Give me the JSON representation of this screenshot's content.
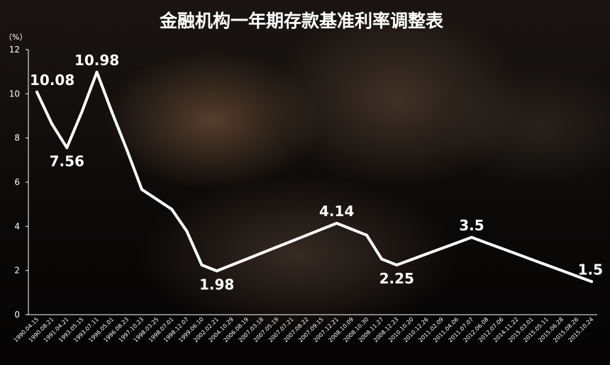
{
  "chart_data": {
    "type": "line",
    "title": "金融机构一年期存款基准利率调整表",
    "ylabel": "（%）",
    "ylim": [
      0,
      12
    ],
    "yticks": [
      0,
      2,
      4,
      6,
      8,
      10,
      12
    ],
    "grid": false,
    "legend": "none",
    "line_color": "#ffffff",
    "categories": [
      "1990.04.15",
      "1990.08.21",
      "1991.04.21",
      "1993.05.15",
      "1993.07.11",
      "1996.05.01",
      "1996.08.23",
      "1997.10.23",
      "1998.03.25",
      "1998.07.01",
      "1998.12.07",
      "1999.06.10",
      "2002.02.21",
      "2004.10.29",
      "2006.08.19",
      "2007.03.18",
      "2007.05.19",
      "2007.07.21",
      "2007.08.22",
      "2007.09.15",
      "2007.12.21",
      "2008.10.09",
      "2008.10.30",
      "2008.11.27",
      "2008.12.23",
      "2010.10.20",
      "2010.12.26",
      "2011.02.09",
      "2011.04.06",
      "2011.07.07",
      "2012.06.08",
      "2012.07.06",
      "2014.11.22",
      "2015.03.01",
      "2015.05.11",
      "2015.06.28",
      "2015.08.26",
      "2015.10.24"
    ],
    "values": [
      10.08,
      8.64,
      7.56,
      9.18,
      10.98,
      9.18,
      7.47,
      5.67,
      5.22,
      4.77,
      3.78,
      2.25,
      1.98,
      2.25,
      2.52,
      2.79,
      3.06,
      3.33,
      3.6,
      3.87,
      4.14,
      3.87,
      3.6,
      2.52,
      2.25,
      2.5,
      2.75,
      3.0,
      3.25,
      3.5,
      3.25,
      3.0,
      2.75,
      2.5,
      2.25,
      2.0,
      1.75,
      1.5
    ],
    "data_labels": [
      {
        "index": 0,
        "text": "10.08",
        "anchor": "start",
        "pos": "above"
      },
      {
        "index": 2,
        "text": "7.56",
        "anchor": "middle",
        "pos": "below"
      },
      {
        "index": 4,
        "text": "10.98",
        "anchor": "middle",
        "pos": "above"
      },
      {
        "index": 12,
        "text": "1.98",
        "anchor": "middle",
        "pos": "below"
      },
      {
        "index": 20,
        "text": "4.14",
        "anchor": "middle",
        "pos": "above"
      },
      {
        "index": 24,
        "text": "2.25",
        "anchor": "middle",
        "pos": "below"
      },
      {
        "index": 29,
        "text": "3.5",
        "anchor": "middle",
        "pos": "above"
      },
      {
        "index": 37,
        "text": "1.5",
        "anchor": "end",
        "pos": "above"
      }
    ]
  }
}
